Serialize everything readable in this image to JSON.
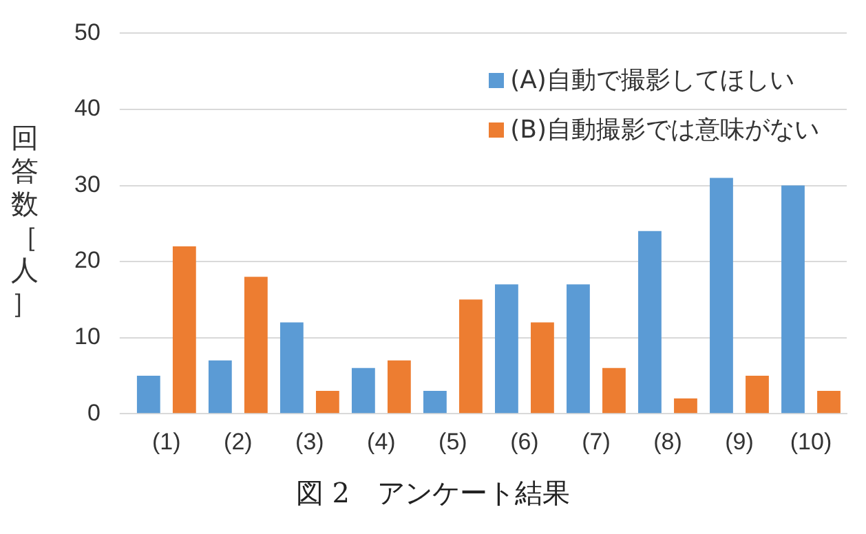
{
  "chart_data": {
    "type": "bar",
    "ylabel": "回答数［人］",
    "categories": [
      "(1)",
      "(2)",
      "(3)",
      "(4)",
      "(5)",
      "(6)",
      "(7)",
      "(8)",
      "(9)",
      "(10)"
    ],
    "series": [
      {
        "name": "(A)自動で撮影してほしい",
        "color": "#5b9bd5",
        "values": [
          5,
          7,
          12,
          6,
          3,
          17,
          17,
          24,
          31,
          30
        ]
      },
      {
        "name": "(B)自動撮影では意味がない",
        "color": "#ed7d31",
        "values": [
          22,
          18,
          3,
          7,
          15,
          12,
          6,
          2,
          5,
          3
        ]
      }
    ],
    "ylim": [
      0,
      50
    ],
    "yticks": [
      0,
      10,
      20,
      30,
      40,
      50
    ],
    "grid": "y",
    "legend": "top right",
    "annotations": [
      "図 2　アンケート結果"
    ]
  }
}
